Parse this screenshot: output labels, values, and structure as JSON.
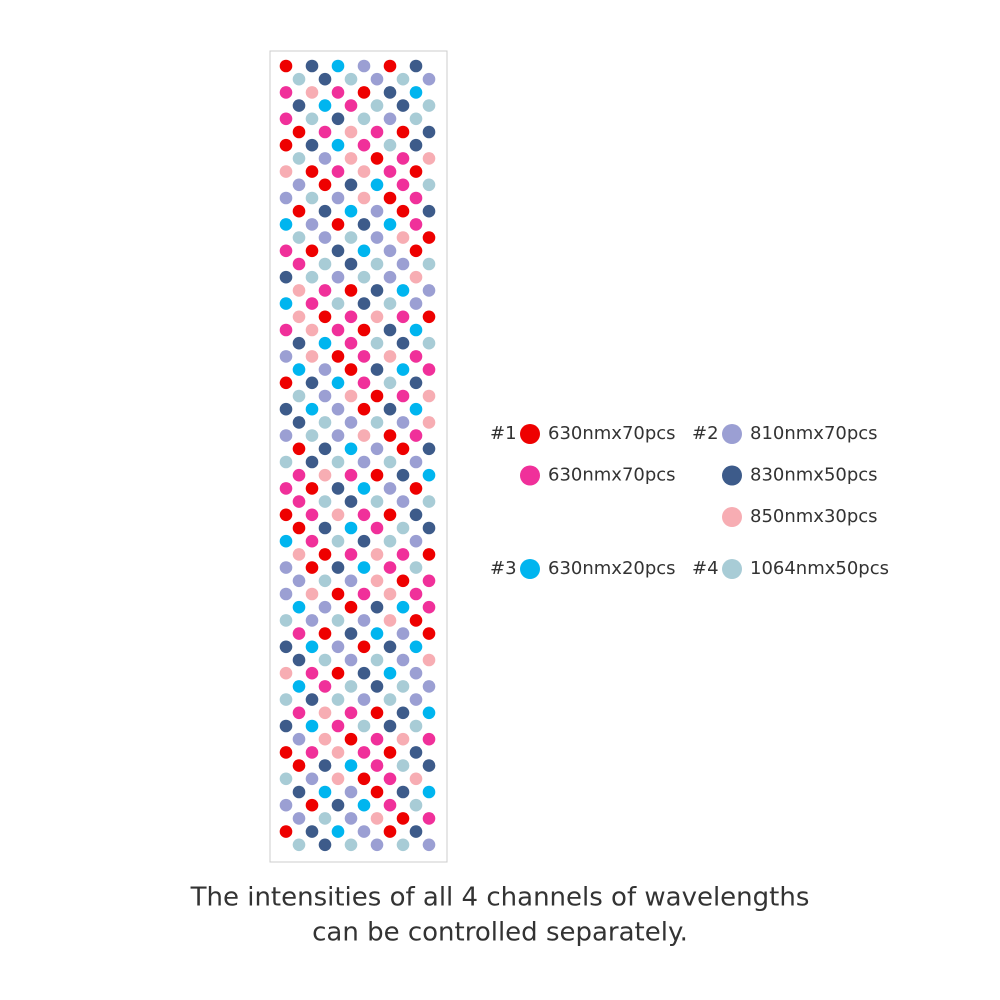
{
  "legend": [
    {
      "label": "#1",
      "items": [
        {
          "color": "#ee0000",
          "text": "630nmx70pcs"
        },
        {
          "color": "#f0309a",
          "text": "630nmx70pcs"
        }
      ]
    },
    {
      "label": "#2",
      "items": [
        {
          "color": "#9b9fd3",
          "text": "810nmx70pcs"
        },
        {
          "color": "#3d5b8a",
          "text": "830nmx50pcs"
        },
        {
          "color": "#f7adb3",
          "text": "850nmx30pcs"
        }
      ]
    },
    {
      "label": "#3",
      "items": [
        {
          "color": "#00b5ef",
          "text": "630nmx20pcs"
        }
      ]
    },
    {
      "label": "#4",
      "items": [
        {
          "color": "#a8ccd6",
          "text": "1064nmx50pcs"
        }
      ]
    }
  ],
  "caption": [
    "The intensities of all 4 channels of wavelengths",
    "can be controlled separately."
  ]
}
